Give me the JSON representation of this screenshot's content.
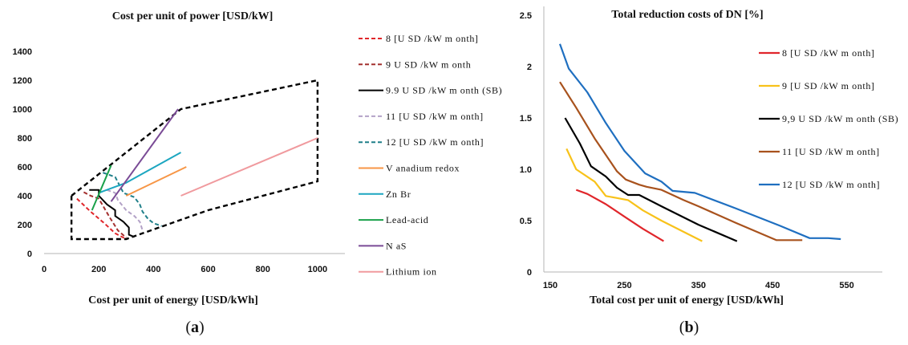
{
  "chart_data": [
    {
      "type": "line",
      "title": "Cost per unit of  power [USD/kW]",
      "xlabel": "Cost per unit of energy [USD/kWh]",
      "ylabel": "",
      "xlim": [
        0,
        1100
      ],
      "ylim": [
        0,
        1400
      ],
      "xticks": [
        "0",
        "200",
        "400",
        "600",
        "800",
        "1000"
      ],
      "yticks": [
        "0",
        "200",
        "400",
        "600",
        "800",
        "1000",
        "1200",
        "1400"
      ],
      "legend_position": "right",
      "caption": "(a)",
      "boundary": {
        "points": [
          [
            100,
            400
          ],
          [
            500,
            1000
          ],
          [
            1000,
            1200
          ],
          [
            1000,
            500
          ],
          [
            600,
            300
          ],
          [
            300,
            100
          ],
          [
            100,
            100
          ],
          [
            100,
            400
          ]
        ],
        "color": "#000000",
        "dashed": true
      },
      "series": [
        {
          "name": "8 [U SD /kW  m onth]",
          "color": "#e0262b",
          "dashed": true,
          "points": [
            [
              120,
              380
            ],
            [
              170,
              290
            ],
            [
              220,
              210
            ],
            [
              260,
              140
            ],
            [
              300,
              100
            ]
          ]
        },
        {
          "name": "9 U SD /kW  m onth",
          "color": "#a3302f",
          "dashed": true,
          "points": [
            [
              145,
              425
            ],
            [
              170,
              400
            ],
            [
              200,
              380
            ],
            [
              240,
              250
            ],
            [
              270,
              160
            ],
            [
              300,
              110
            ]
          ]
        },
        {
          "name": "9.9 U SD /kW  m onth (SB)",
          "color": "#000000",
          "dashed": false,
          "points": [
            [
              165,
              440
            ],
            [
              200,
              440
            ],
            [
              200,
              400
            ],
            [
              230,
              340
            ],
            [
              260,
              300
            ],
            [
              260,
              260
            ],
            [
              290,
              220
            ],
            [
              310,
              180
            ],
            [
              310,
              130
            ],
            [
              330,
              115
            ]
          ]
        },
        {
          "name": "11 [U SD /kW  m onth]",
          "color": "#b3a2c7",
          "dashed": true,
          "points": [
            [
              230,
              440
            ],
            [
              260,
              420
            ],
            [
              270,
              370
            ],
            [
              300,
              300
            ],
            [
              330,
              260
            ],
            [
              350,
              220
            ],
            [
              360,
              160
            ]
          ]
        },
        {
          "name": "12 [U SD /kW  m onth]",
          "color": "#1f7f89",
          "dashed": true,
          "points": [
            [
              215,
              560
            ],
            [
              260,
              530
            ],
            [
              290,
              420
            ],
            [
              330,
              390
            ],
            [
              350,
              340
            ],
            [
              360,
              290
            ],
            [
              380,
              240
            ],
            [
              400,
              210
            ],
            [
              430,
              190
            ]
          ]
        },
        {
          "name": "V anadium  redox",
          "color": "#f79646",
          "dashed": false,
          "points": [
            [
              300,
              400
            ],
            [
              520,
              600
            ]
          ]
        },
        {
          "name": "Zn Br",
          "color": "#1ca6c0",
          "dashed": false,
          "points": [
            [
              200,
              420
            ],
            [
              300,
              490
            ],
            [
              500,
              700
            ]
          ]
        },
        {
          "name": "Lead-acid",
          "color": "#1aa14a",
          "dashed": false,
          "points": [
            [
              175,
              300
            ],
            [
              245,
              610
            ]
          ]
        },
        {
          "name": "N aS",
          "color": "#7a4b96",
          "dashed": false,
          "points": [
            [
              245,
              360
            ],
            [
              490,
              1000
            ]
          ]
        },
        {
          "name": "Lithium  ion",
          "color": "#f09a9e",
          "dashed": false,
          "points": [
            [
              500,
              400
            ],
            [
              1000,
              800
            ]
          ]
        }
      ]
    },
    {
      "type": "line",
      "title": "Total reduction costs of DN [%]",
      "xlabel": "Total cost per unit of energy [USD/kWh]",
      "ylabel": "",
      "xlim": [
        150,
        600
      ],
      "ylim": [
        0,
        2.5
      ],
      "xticks": [
        {
          "label": "150",
          "value": 150
        },
        {
          "label": "250",
          "value": 250
        },
        {
          "label": "350",
          "value": 350
        },
        {
          "label": "450",
          "value": 450
        },
        {
          "label": "550",
          "value": 550
        }
      ],
      "yticks": [
        {
          "label": "0",
          "value": 0
        },
        {
          "label": "0.5",
          "value": 0.5
        },
        {
          "label": "1.0",
          "value": 1.0
        },
        {
          "label": "1.5",
          "value": 1.5
        },
        {
          "label": "2",
          "value": 2
        },
        {
          "label": "2.5",
          "value": 2.5
        }
      ],
      "legend_position": "right",
      "caption": "(b)",
      "series": [
        {
          "name": "8 [U SD /kW  m onth]",
          "color": "#e0262b",
          "points": [
            [
              185,
              0.8
            ],
            [
              200,
              0.76
            ],
            [
              225,
              0.66
            ],
            [
              250,
              0.54
            ],
            [
              275,
              0.42
            ],
            [
              303,
              0.3
            ]
          ]
        },
        {
          "name": "9 [U SD /kW  m onth]",
          "color": "#f8c21a",
          "points": [
            [
              172,
              1.2
            ],
            [
              185,
              1.0
            ],
            [
              210,
              0.88
            ],
            [
              225,
              0.74
            ],
            [
              240,
              0.72
            ],
            [
              255,
              0.7
            ],
            [
              275,
              0.6
            ],
            [
              300,
              0.5
            ],
            [
              355,
              0.3
            ]
          ]
        },
        {
          "name": "9,9 U SD /kW  m onth (SB)",
          "color": "#000000",
          "points": [
            [
              170,
              1.5
            ],
            [
              190,
              1.25
            ],
            [
              205,
              1.03
            ],
            [
              225,
              0.93
            ],
            [
              240,
              0.82
            ],
            [
              255,
              0.75
            ],
            [
              270,
              0.75
            ],
            [
              300,
              0.64
            ],
            [
              350,
              0.46
            ],
            [
              402,
              0.3
            ]
          ]
        },
        {
          "name": "11 [U SD /kW  m onth]",
          "color": "#a8521d",
          "points": [
            [
              163,
              1.85
            ],
            [
              185,
              1.6
            ],
            [
              210,
              1.3
            ],
            [
              240,
              0.98
            ],
            [
              252,
              0.9
            ],
            [
              270,
              0.85
            ],
            [
              280,
              0.83
            ],
            [
              300,
              0.8
            ],
            [
              330,
              0.7
            ],
            [
              350,
              0.64
            ],
            [
              400,
              0.48
            ],
            [
              455,
              0.31
            ],
            [
              490,
              0.31
            ]
          ]
        },
        {
          "name": "12 [U SD /kW  m onth]",
          "color": "#1f6fc0",
          "points": [
            [
              163,
              2.22
            ],
            [
              175,
              1.98
            ],
            [
              200,
              1.75
            ],
            [
              225,
              1.45
            ],
            [
              250,
              1.18
            ],
            [
              278,
              0.96
            ],
            [
              300,
              0.88
            ],
            [
              315,
              0.79
            ],
            [
              345,
              0.77
            ],
            [
              400,
              0.62
            ],
            [
              460,
              0.45
            ],
            [
              500,
              0.33
            ],
            [
              525,
              0.33
            ],
            [
              542,
              0.32
            ]
          ]
        }
      ]
    }
  ]
}
